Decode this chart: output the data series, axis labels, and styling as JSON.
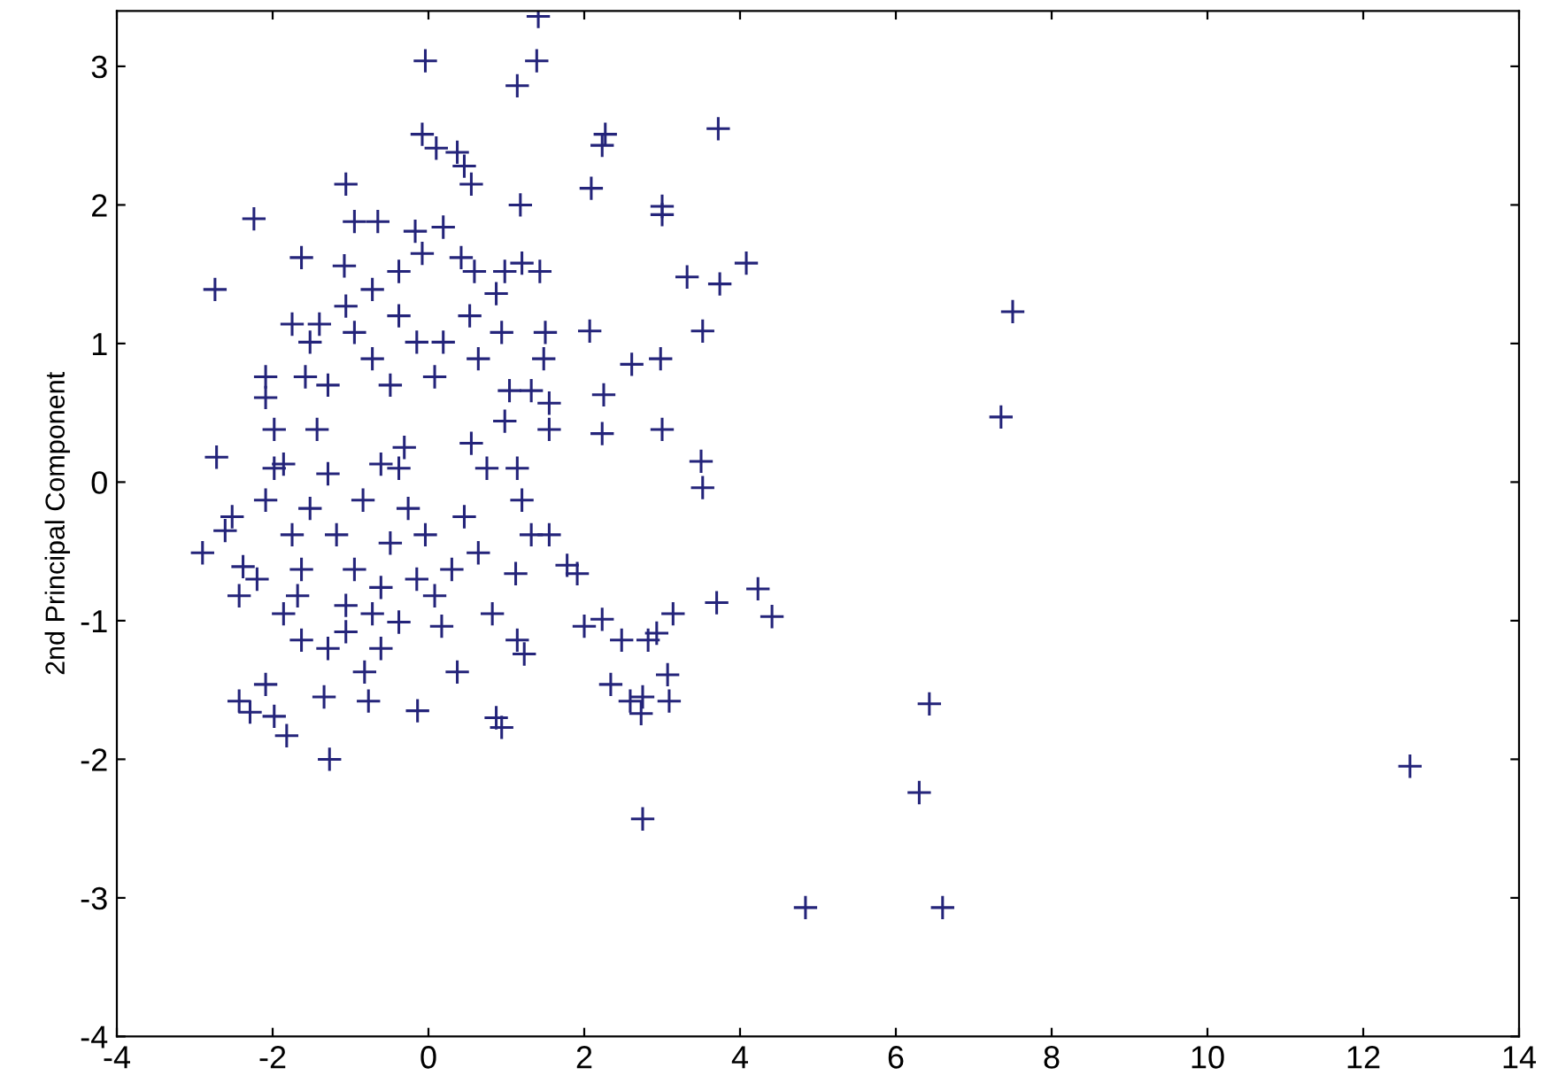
{
  "chart_data": {
    "type": "scatter",
    "ylabel": "2nd Principal Component",
    "xlim": [
      -4,
      14
    ],
    "ylim": [
      -4,
      3.4
    ],
    "xticks": [
      -4,
      -2,
      0,
      2,
      4,
      6,
      8,
      10,
      12,
      14
    ],
    "yticks": [
      -4,
      -3,
      -2,
      -1,
      0,
      1,
      2,
      3
    ],
    "marker": "cross",
    "grid": false,
    "series": [
      {
        "color": "#24247a",
        "x": [
          7.5,
          7.35,
          12.6,
          4.84,
          6.6,
          6.43,
          6.3,
          4.23,
          4.41,
          3.7,
          3.5,
          3.52,
          3.74,
          4.08,
          3.52,
          3.32,
          3.72,
          3.0,
          3.0,
          2.98,
          3.0,
          2.61,
          2.25,
          2.23,
          2.07,
          2.23,
          2.27,
          2.09,
          1.41,
          1.39,
          1.14,
          1.18,
          1.2,
          1.43,
          1.5,
          1.32,
          1.04,
          0.55,
          -0.04,
          -0.08,
          0.1,
          0.37,
          0.46,
          0.55,
          -0.17,
          0.19,
          -0.08,
          0.42,
          0.87,
          -1.06,
          -0.95,
          -0.65,
          -1.08,
          -1.63,
          -2.74,
          -2.24,
          -2.72,
          -2.9,
          -2.61,
          -2.38,
          -2.43,
          -2.43,
          -2.29,
          -1.98,
          -1.82,
          -1.27,
          -1.34,
          -0.77,
          -0.82,
          -0.14,
          0.17,
          0.37,
          0.87,
          0.94,
          1.14,
          1.23,
          1.12,
          1.78,
          1.91,
          2.0,
          2.23,
          2.34,
          2.59,
          2.75,
          2.73,
          2.82,
          2.93,
          3.07,
          3.09,
          3.14,
          2.75,
          2.48,
          -2.09,
          -1.98,
          -1.86,
          -1.98,
          -1.52,
          -1.4,
          -1.58,
          -1.29,
          -1.43,
          -1.29,
          -1.52,
          -1.75,
          -1.63,
          -1.68,
          -1.18,
          -0.95,
          -1.06,
          -1.06,
          -0.72,
          -0.61,
          -0.49,
          -0.84,
          -0.61,
          -0.38,
          -0.31,
          -0.49,
          -0.72,
          -0.95,
          -0.38,
          -0.15,
          0.08,
          0.19,
          0.53,
          0.64,
          0.98,
          0.75,
          0.46,
          0.64,
          0.3,
          0.08,
          -0.15,
          -0.04,
          -0.26,
          -2.09,
          -2.2,
          -1.86,
          -1.63,
          -2.09,
          -1.29,
          -0.61,
          -0.38,
          0.82,
          1.32,
          1.55,
          1.2,
          1.14,
          1.55,
          1.55,
          1.48,
          0.94,
          0.98,
          0.59,
          -0.38,
          -0.72,
          -1.06,
          -1.75,
          -2.09,
          -2.52
        ],
        "values": [
          1.23,
          0.47,
          -2.05,
          -3.07,
          -3.07,
          -1.6,
          -2.24,
          -0.77,
          -0.97,
          -0.87,
          0.15,
          -0.04,
          1.43,
          1.58,
          1.09,
          1.48,
          2.55,
          1.99,
          1.93,
          0.89,
          0.38,
          0.85,
          0.63,
          0.35,
          1.09,
          2.43,
          2.51,
          2.12,
          3.36,
          3.04,
          2.86,
          2.0,
          1.58,
          1.52,
          1.08,
          0.66,
          0.66,
          0.28,
          3.04,
          2.51,
          2.41,
          2.38,
          2.28,
          2.15,
          1.81,
          1.84,
          1.65,
          1.62,
          1.36,
          2.15,
          1.88,
          1.88,
          1.56,
          1.62,
          1.39,
          1.9,
          0.18,
          -0.51,
          -0.35,
          -0.61,
          -0.82,
          -1.58,
          -1.66,
          -1.69,
          -1.83,
          -2.0,
          -1.55,
          -1.58,
          -1.37,
          -1.65,
          -1.04,
          -1.37,
          -1.7,
          -1.77,
          -1.14,
          -1.24,
          -0.66,
          -0.6,
          -0.66,
          -1.04,
          -0.99,
          -1.46,
          -1.58,
          -1.55,
          -1.67,
          -1.14,
          -1.09,
          -1.39,
          -1.58,
          -0.95,
          -2.43,
          -1.14,
          0.61,
          0.38,
          0.13,
          0.1,
          1.01,
          1.14,
          0.76,
          0.7,
          0.38,
          0.06,
          -0.19,
          -0.38,
          -0.63,
          -0.82,
          -0.38,
          -0.63,
          -0.89,
          -1.08,
          -0.95,
          -0.76,
          -0.44,
          -0.13,
          0.13,
          0.1,
          0.25,
          0.7,
          0.89,
          1.08,
          1.2,
          1.01,
          0.76,
          1.01,
          1.2,
          0.89,
          0.44,
          0.1,
          -0.25,
          -0.51,
          -0.63,
          -0.82,
          -0.7,
          -0.38,
          -0.19,
          -0.13,
          -0.7,
          -0.95,
          -1.14,
          -1.46,
          -1.2,
          -1.2,
          -1.01,
          -0.95,
          -0.38,
          -0.38,
          -0.13,
          0.1,
          0.38,
          0.57,
          0.89,
          1.08,
          1.52,
          1.52,
          1.52,
          1.39,
          1.27,
          1.14,
          0.76,
          -0.25
        ]
      }
    ]
  }
}
